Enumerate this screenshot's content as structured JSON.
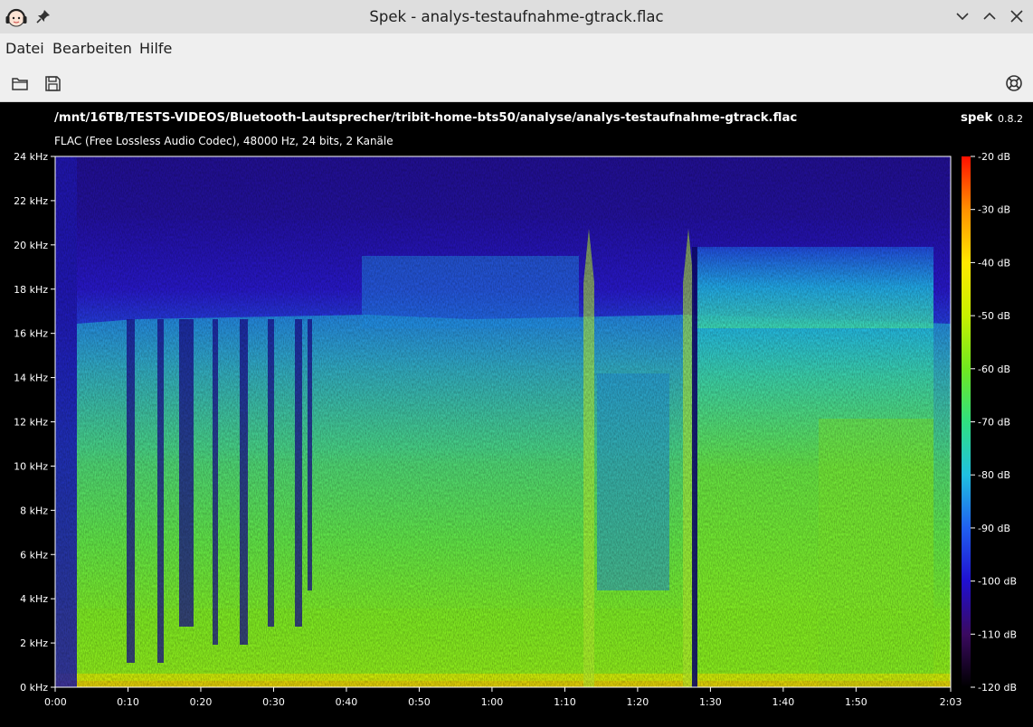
{
  "window": {
    "title": "Spek - analys-testaufnahme-gtrack.flac"
  },
  "menu": {
    "items": [
      "Datei",
      "Bearbeiten",
      "Hilfe"
    ]
  },
  "toolbar": {
    "open_icon": "folder-open-icon",
    "save_icon": "save-icon",
    "help_icon": "help-lifebuoy-icon"
  },
  "header": {
    "file_path": "/mnt/16TB/TESTS-VIDEOS/Bluetooth-Lautsprecher/tribit-home-bts50/analyse/analys-testaufnahme-gtrack.flac",
    "codec_info": "FLAC (Free Lossless Audio Codec), 48000 Hz, 24 bits, 2 Kanäle",
    "brand": "spek",
    "version": "0.8.2"
  },
  "spectrogram": {
    "freq_axis_labels": [
      "0 kHz",
      "2 kHz",
      "4 kHz",
      "6 kHz",
      "8 kHz",
      "10 kHz",
      "12 kHz",
      "14 kHz",
      "16 kHz",
      "18 kHz",
      "20 kHz",
      "22 kHz",
      "24 kHz"
    ],
    "time_axis_labels": [
      "0:00",
      "0:10",
      "0:20",
      "0:30",
      "0:40",
      "0:50",
      "1:00",
      "1:10",
      "1:20",
      "1:30",
      "1:40",
      "1:50",
      "2:03"
    ],
    "db_scale_labels": [
      "-20 dB",
      "-30 dB",
      "-40 dB",
      "-50 dB",
      "-60 dB",
      "-70 dB",
      "-80 dB",
      "-90 dB",
      "-100 dB",
      "-110 dB",
      "-120 dB"
    ],
    "duration_seconds": 123,
    "max_freq_khz": 24
  },
  "colors": {
    "background": "#000000",
    "spectrum_low": "#1e0a6e",
    "spectrum_mid": "#20d0e0",
    "spectrum_high": "#7cf01e",
    "spectrum_peak": "#ff1400"
  }
}
